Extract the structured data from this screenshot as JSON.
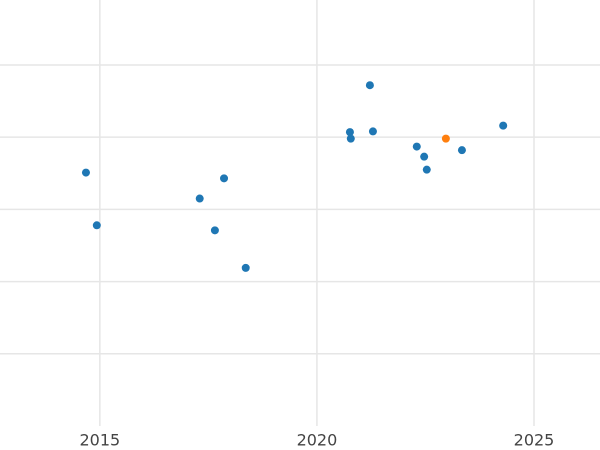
{
  "chart_data": {
    "type": "scatter",
    "xlim": [
      2012.7,
      2026.52
    ],
    "xticks": [
      2015,
      2020,
      2025
    ],
    "ylim": [
      0,
      5.9
    ],
    "yticks": [
      1,
      2,
      3,
      4,
      5
    ],
    "ytick_labels": false,
    "grid": true,
    "series": [
      {
        "color": "#1f77b4",
        "x": [
          2014.68,
          2014.93,
          2017.3,
          2017.86,
          2017.65,
          2018.36,
          2021.22,
          2020.76,
          2020.78,
          2021.29,
          2022.3,
          2022.47,
          2022.53,
          2023.34,
          2024.29
        ],
        "values": [
          3.51,
          2.78,
          3.15,
          3.43,
          2.71,
          2.19,
          4.72,
          4.07,
          3.98,
          4.08,
          3.87,
          3.73,
          3.55,
          3.82,
          4.16
        ]
      },
      {
        "color": "#ff7f0e",
        "x": [
          2022.97
        ],
        "values": [
          3.98
        ]
      }
    ]
  }
}
